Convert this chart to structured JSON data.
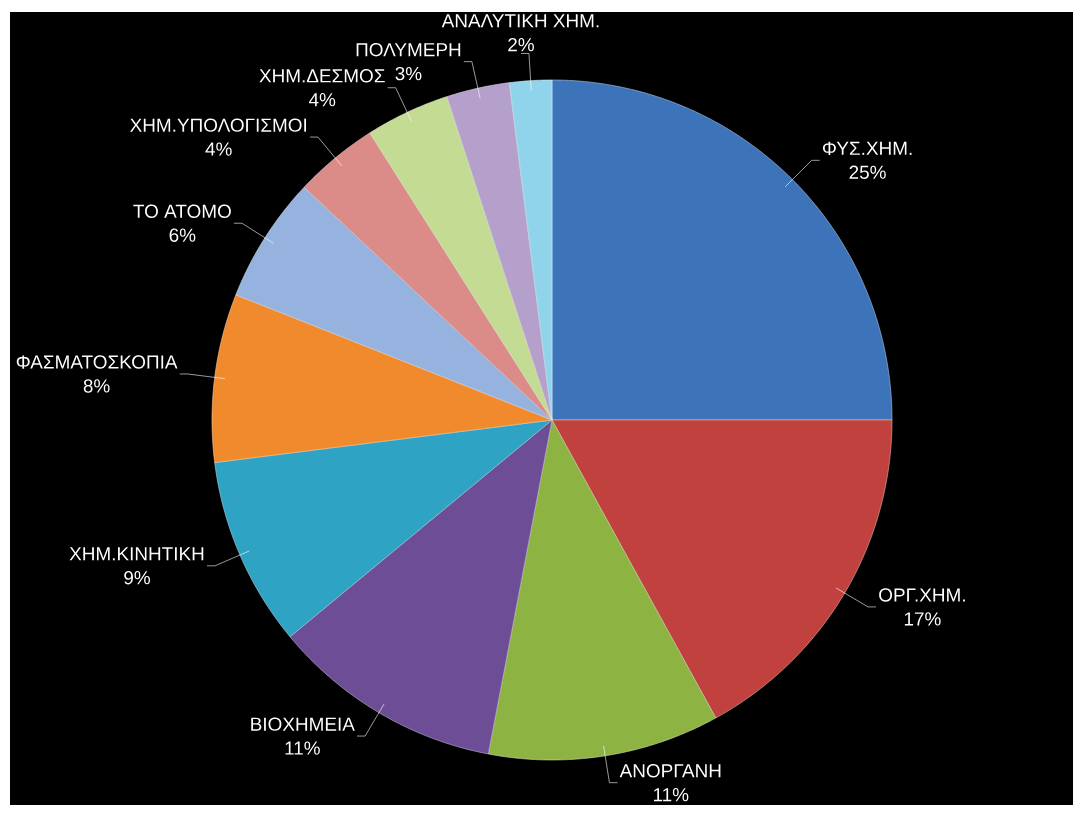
{
  "chart_data": {
    "type": "pie",
    "categories": [
      "ΦΥΣ.ΧΗΜ.",
      "ΟΡΓ.ΧΗΜ.",
      "ΑΝΟΡΓΑΝΗ",
      "ΒΙΟΧΗΜΕΙΑ",
      "ΧΗΜ.ΚΙΝΗΤΙΚΗ",
      "ΦΑΣΜΑΤΟΣΚΟΠΙΑ",
      "ΤΟ ΑΤΟΜΟ",
      "ΧΗΜ.ΥΠΟΛΟΓΙΣΜΟΙ",
      "ΧΗΜ.ΔΕΣΜΟΣ",
      "ΠΟΛΥΜΕΡΗ",
      "ΑΝΑΛΥΤΙΚΗ ΧΗΜ."
    ],
    "values": [
      25,
      17,
      11,
      11,
      9,
      8,
      6,
      4,
      4,
      3,
      2
    ],
    "value_labels": [
      "25%",
      "17%",
      "11%",
      "11%",
      "9%",
      "8%",
      "6%",
      "4%",
      "4%",
      "3%",
      "2%"
    ],
    "colors": [
      "#3d73b9",
      "#c0413d",
      "#8db443",
      "#6c4d96",
      "#2fa3c3",
      "#f08a2c",
      "#95b3de",
      "#dc8c88",
      "#c4db93",
      "#b4a0cb",
      "#8fd4ea"
    ]
  }
}
